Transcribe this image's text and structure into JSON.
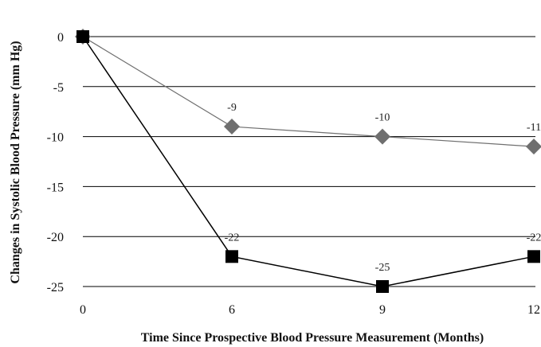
{
  "chart_data": {
    "type": "line",
    "title": "",
    "xlabel": "Time Since Prospective Blood Pressure Measurement (Months)",
    "ylabel": "Changes in Systolic Blood Pressure (mm Hg)",
    "categories": [
      "0",
      "6",
      "9",
      "12"
    ],
    "ylim": [
      -25,
      0
    ],
    "yticks": [
      0,
      -5,
      -10,
      -15,
      -20,
      -25
    ],
    "ytick_labels": [
      "0",
      "-5",
      "-10",
      "-15",
      "-20",
      "-25"
    ],
    "grid": true,
    "legend": "none",
    "series": [
      {
        "values": [
          0,
          -9,
          -10,
          -11
        ],
        "data_labels": [
          "",
          "-9",
          "-10",
          "-11"
        ],
        "marker": "diamond",
        "color": "#6f6f6f"
      },
      {
        "values": [
          0,
          -22,
          -25,
          -22
        ],
        "data_labels": [
          "",
          "-22",
          "-25",
          "-22"
        ],
        "marker": "square",
        "color": "#000000"
      }
    ]
  }
}
